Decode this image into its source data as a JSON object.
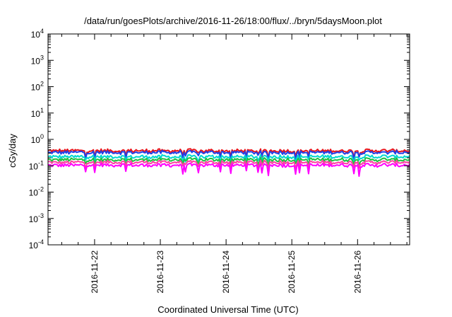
{
  "chart_data": {
    "type": "line",
    "title": "/data/run/goesPlots/archive/2016-11-26/18:00/flux/../bryn/5daysMoon.plot",
    "xlabel": "Coordinated Universal Time (UTC)",
    "ylabel": "cGy/day",
    "yscale": "log",
    "ylim": [
      0.0001,
      10000
    ],
    "xlim": [
      "2016-11-21 07:00",
      "2016-11-26 19:00"
    ],
    "y_ticks": [
      {
        "value": 0.0001,
        "base": "10",
        "exp": "-4"
      },
      {
        "value": 0.001,
        "base": "10",
        "exp": "-3"
      },
      {
        "value": 0.01,
        "base": "10",
        "exp": "-2"
      },
      {
        "value": 0.1,
        "base": "10",
        "exp": "-1"
      },
      {
        "value": 1,
        "base": "10",
        "exp": "0"
      },
      {
        "value": 10,
        "base": "10",
        "exp": "1"
      },
      {
        "value": 100,
        "base": "10",
        "exp": "2"
      },
      {
        "value": 1000,
        "base": "10",
        "exp": "3"
      },
      {
        "value": 10000,
        "base": "10",
        "exp": "4"
      }
    ],
    "x_ticks": [
      "2016-11-22",
      "2016-11-23",
      "2016-11-24",
      "2016-11-25",
      "2016-11-26"
    ],
    "grid": false,
    "legend": "none",
    "series": [
      {
        "color": "#e8141c",
        "typical_value": 0.37,
        "min_dip": 0.2
      },
      {
        "color": "#2040e8",
        "typical_value": 0.32,
        "min_dip": 0.17
      },
      {
        "color": "#00d8d0",
        "typical_value": 0.22,
        "min_dip": 0.12
      },
      {
        "color": "#20c040",
        "typical_value": 0.17,
        "min_dip": 0.1
      },
      {
        "color": "#ff40a0",
        "typical_value": 0.135,
        "min_dip": 0.075
      },
      {
        "color": "#ff00ff",
        "typical_value": 0.105,
        "min_dip": 0.035
      }
    ]
  }
}
